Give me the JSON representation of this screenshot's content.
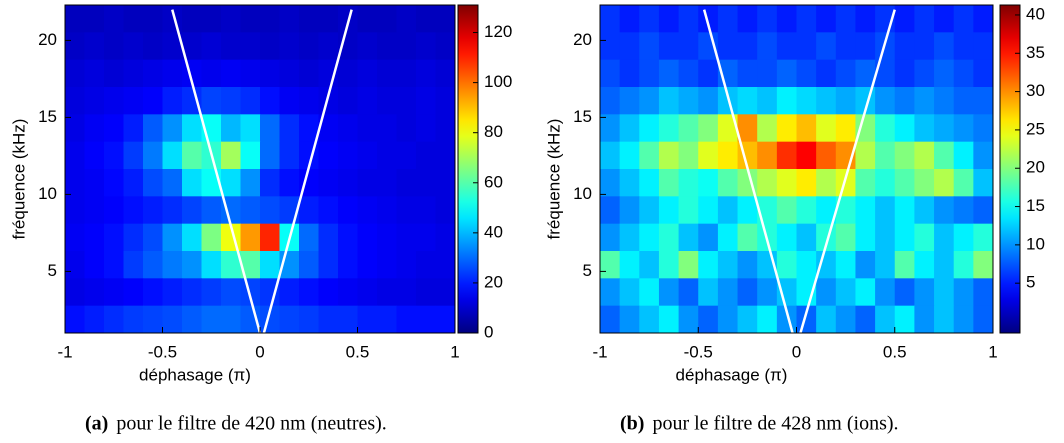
{
  "chart_data": [
    {
      "type": "heatmap",
      "colormap": "jet",
      "xlabel": "déphasage (π)",
      "ylabel": "fréquence (kHz)",
      "caption_label": "(a)",
      "caption": "pour le filtre de 420 nm (neutres).",
      "xlim": [
        -1,
        1
      ],
      "ylim": [
        1,
        22.3
      ],
      "xticks": [
        -1,
        -0.5,
        0,
        0.5,
        1
      ],
      "yticks": [
        5,
        10,
        15,
        20
      ],
      "clim": [
        0,
        131
      ],
      "cticks": [
        0,
        20,
        40,
        60,
        80,
        100,
        120
      ],
      "line_color": "#ffffff",
      "lines": [
        {
          "x": [
            -0.45,
            0
          ],
          "y": [
            22,
            1
          ]
        },
        {
          "x": [
            0.02,
            0.47
          ],
          "y": [
            1,
            22
          ]
        }
      ],
      "z": [
        [
          8,
          8,
          9,
          8,
          8,
          9,
          8,
          8,
          9,
          8,
          8,
          9,
          8,
          8,
          9,
          8,
          8,
          9,
          8,
          8
        ],
        [
          9,
          10,
          9,
          10,
          9,
          10,
          10,
          11,
          10,
          10,
          9,
          10,
          9,
          10,
          9,
          10,
          9,
          9,
          10,
          9
        ],
        [
          11,
          12,
          11,
          12,
          13,
          14,
          15,
          14,
          15,
          14,
          13,
          12,
          11,
          12,
          11,
          12,
          11,
          11,
          12,
          11
        ],
        [
          12,
          13,
          14,
          15,
          16,
          20,
          22,
          25,
          24,
          22,
          18,
          15,
          14,
          13,
          12,
          13,
          12,
          12,
          13,
          12
        ],
        [
          13,
          15,
          16,
          20,
          28,
          35,
          45,
          50,
          40,
          45,
          30,
          22,
          18,
          15,
          14,
          13,
          13,
          12,
          13,
          12
        ],
        [
          14,
          16,
          18,
          24,
          32,
          45,
          60,
          55,
          70,
          50,
          30,
          22,
          18,
          16,
          15,
          14,
          13,
          13,
          12,
          12
        ],
        [
          14,
          15,
          17,
          20,
          26,
          30,
          45,
          50,
          45,
          35,
          22,
          18,
          16,
          15,
          14,
          13,
          13,
          12,
          12,
          12
        ],
        [
          14,
          15,
          16,
          18,
          20,
          22,
          25,
          28,
          30,
          28,
          26,
          24,
          20,
          18,
          16,
          15,
          14,
          13,
          13,
          12
        ],
        [
          15,
          16,
          18,
          22,
          26,
          35,
          45,
          65,
          80,
          95,
          110,
          50,
          30,
          22,
          18,
          16,
          15,
          14,
          14,
          13
        ],
        [
          14,
          16,
          18,
          24,
          28,
          32,
          35,
          45,
          55,
          60,
          45,
          35,
          28,
          22,
          18,
          16,
          15,
          14,
          13,
          13
        ],
        [
          13,
          14,
          15,
          16,
          18,
          20,
          22,
          24,
          26,
          25,
          23,
          20,
          18,
          16,
          15,
          14,
          13,
          13,
          12,
          12
        ],
        [
          18,
          20,
          22,
          24,
          25,
          26,
          28,
          30,
          30,
          28,
          26,
          25,
          24,
          22,
          22,
          20,
          20,
          18,
          18,
          18
        ]
      ]
    },
    {
      "type": "heatmap",
      "colormap": "jet",
      "xlabel": "déphasage (π)",
      "ylabel": "fréquence (kHz)",
      "caption_label": "(b)",
      "caption": "pour le filtre de 428 nm (ions).",
      "xlim": [
        -1,
        1
      ],
      "ylim": [
        1,
        22.3
      ],
      "xticks": [
        -1,
        -0.5,
        0,
        0.5,
        1
      ],
      "yticks": [
        5,
        10,
        15,
        20
      ],
      "clim": [
        -1.5,
        41.3
      ],
      "cticks": [
        5,
        10,
        15,
        20,
        25,
        30,
        35,
        40
      ],
      "line_color": "#ffffff",
      "lines": [
        {
          "x": [
            -0.47,
            -0.02
          ],
          "y": [
            22,
            1
          ]
        },
        {
          "x": [
            0.02,
            0.5
          ],
          "y": [
            1,
            22
          ]
        }
      ],
      "z": [
        [
          6,
          5,
          6,
          5,
          6,
          5,
          6,
          5,
          6,
          5,
          6,
          5,
          6,
          5,
          6,
          5,
          6,
          5,
          6,
          5
        ],
        [
          6,
          6,
          7,
          6,
          6,
          7,
          6,
          6,
          7,
          6,
          6,
          7,
          6,
          6,
          7,
          6,
          6,
          7,
          6,
          6
        ],
        [
          7,
          6,
          7,
          8,
          7,
          6,
          8,
          7,
          7,
          8,
          7,
          6,
          7,
          8,
          7,
          6,
          7,
          8,
          7,
          6
        ],
        [
          8,
          9,
          10,
          12,
          11,
          10,
          12,
          13,
          12,
          14,
          13,
          12,
          11,
          12,
          10,
          9,
          10,
          9,
          8,
          8
        ],
        [
          10,
          12,
          14,
          16,
          18,
          20,
          24,
          30,
          22,
          26,
          28,
          24,
          26,
          20,
          16,
          14,
          12,
          11,
          10,
          9
        ],
        [
          12,
          14,
          18,
          22,
          20,
          24,
          26,
          28,
          30,
          34,
          36,
          32,
          30,
          22,
          18,
          20,
          22,
          18,
          14,
          10
        ],
        [
          10,
          12,
          14,
          18,
          16,
          15,
          18,
          20,
          22,
          24,
          26,
          22,
          24,
          18,
          16,
          18,
          20,
          22,
          18,
          12
        ],
        [
          8,
          10,
          12,
          14,
          16,
          14,
          12,
          14,
          16,
          18,
          16,
          14,
          16,
          14,
          12,
          14,
          12,
          10,
          9,
          8
        ],
        [
          10,
          12,
          14,
          16,
          12,
          10,
          14,
          18,
          16,
          14,
          12,
          16,
          18,
          14,
          12,
          14,
          16,
          12,
          14,
          16
        ],
        [
          18,
          14,
          12,
          16,
          20,
          14,
          12,
          10,
          12,
          16,
          14,
          12,
          14,
          10,
          12,
          18,
          14,
          12,
          16,
          20
        ],
        [
          10,
          12,
          14,
          10,
          8,
          12,
          10,
          8,
          10,
          12,
          14,
          10,
          12,
          14,
          10,
          8,
          10,
          12,
          10,
          8
        ],
        [
          8,
          10,
          12,
          14,
          10,
          8,
          10,
          12,
          14,
          10,
          8,
          12,
          10,
          8,
          12,
          14,
          10,
          12,
          10,
          8
        ]
      ]
    }
  ]
}
